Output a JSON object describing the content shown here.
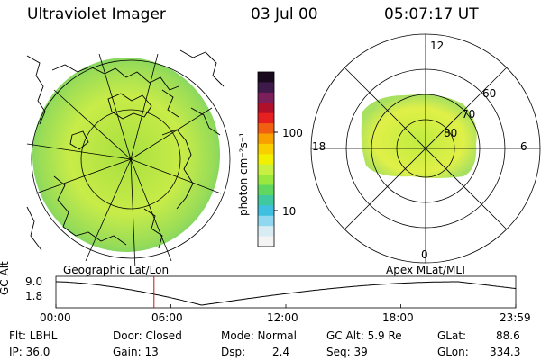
{
  "header": {
    "title": "Ultraviolet Imager",
    "date": "03 Jul 00",
    "time": "05:07:17 UT"
  },
  "colorbar": {
    "unit_label": "photon cm⁻²s⁻¹",
    "ticks": [
      "100",
      "10"
    ],
    "colors": [
      "#1a0a1e",
      "#3d1a4a",
      "#7a1f5a",
      "#b0102a",
      "#e62020",
      "#f06010",
      "#f8a000",
      "#f8d000",
      "#f0f000",
      "#c8f040",
      "#98e840",
      "#60d860",
      "#40c8a0",
      "#40c0e0",
      "#90d8f0",
      "#d8ecf4",
      "#f4f4f4"
    ]
  },
  "polar_plot": {
    "labels": {
      "top": "12",
      "left": "18",
      "right": "6",
      "bottom": "0",
      "r60": "60",
      "r70": "70",
      "r80": "80"
    }
  },
  "panel_labels": {
    "left": "Geographic Lat/Lon",
    "right": "Apex MLat/MLT"
  },
  "timeline": {
    "ylabel": "GC Alt",
    "yticks": [
      "9.0",
      "1.8"
    ],
    "xticks": [
      "00:00",
      "06:00",
      "12:00",
      "18:00",
      "23:59"
    ],
    "current_marker_hours": 5.12
  },
  "info": {
    "flt": "Flt: LBHL",
    "ip": "IP: 36.0",
    "door": "Door: Closed",
    "gain": "Gain: 13",
    "mode": "Mode: Normal",
    "dsp_label": "Dsp:",
    "dsp_value": "2.4",
    "gcalt": "GC Alt: 5.9 Re",
    "seq": "Seq: 39",
    "glat_label": "GLat:",
    "glat_value": "88.6",
    "glon_label": "GLon:",
    "glon_value": "334.3"
  }
}
